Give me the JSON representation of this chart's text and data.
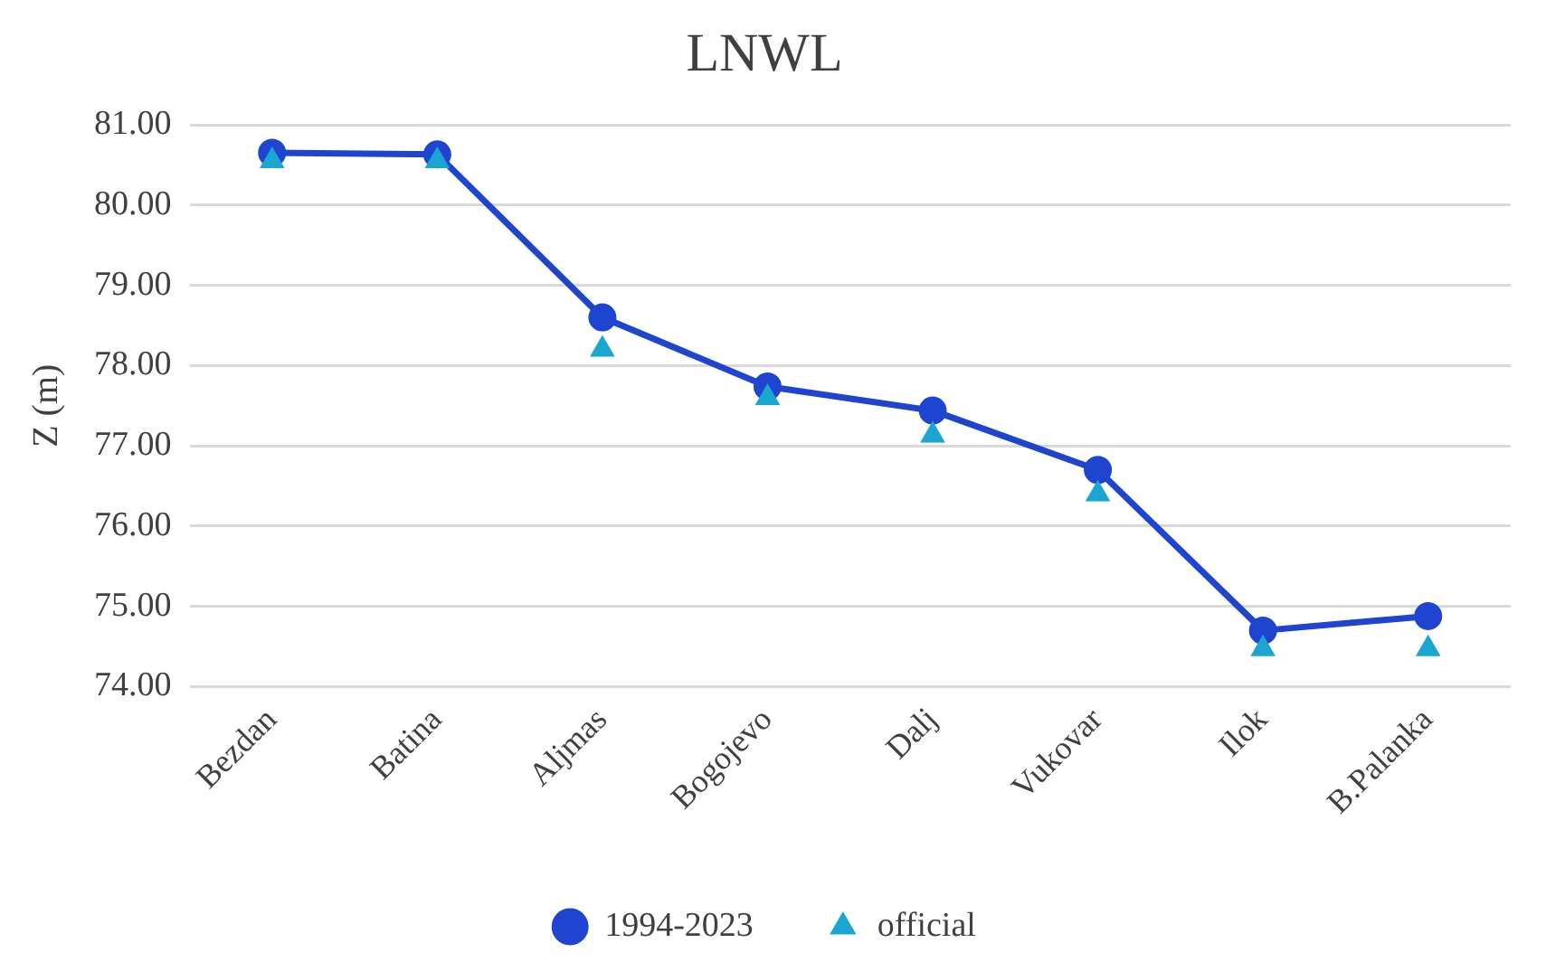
{
  "chart_data": {
    "type": "line",
    "title": "LNWL",
    "ylabel": "Z (m)",
    "categories": [
      "Bezdan",
      "Batina",
      "Aljmas",
      "Bogojevo",
      "Dalj",
      "Vukovar",
      "Ilok",
      "B.Palanka"
    ],
    "series": [
      {
        "name": "1994-2023",
        "marker": "circle",
        "color": "#1f45d0",
        "values": [
          80.65,
          80.63,
          78.6,
          77.74,
          77.44,
          76.7,
          74.7,
          74.88
        ]
      },
      {
        "name": "official",
        "type": "scatter",
        "marker": "triangle",
        "color": "#1ba6d2",
        "values": [
          80.55,
          80.55,
          78.2,
          77.6,
          77.13,
          76.4,
          74.47,
          74.47
        ]
      }
    ],
    "ylim": [
      74,
      81
    ],
    "yticks": [
      {
        "value": 74,
        "label": "74.00"
      },
      {
        "value": 75,
        "label": "75.00"
      },
      {
        "value": 76,
        "label": "76.00"
      },
      {
        "value": 77,
        "label": "77.00"
      },
      {
        "value": 78,
        "label": "78.00"
      },
      {
        "value": 79,
        "label": "79.00"
      },
      {
        "value": 80,
        "label": "80.00"
      },
      {
        "value": 81,
        "label": "81.00"
      }
    ],
    "grid": "y",
    "legend": "bottom"
  }
}
